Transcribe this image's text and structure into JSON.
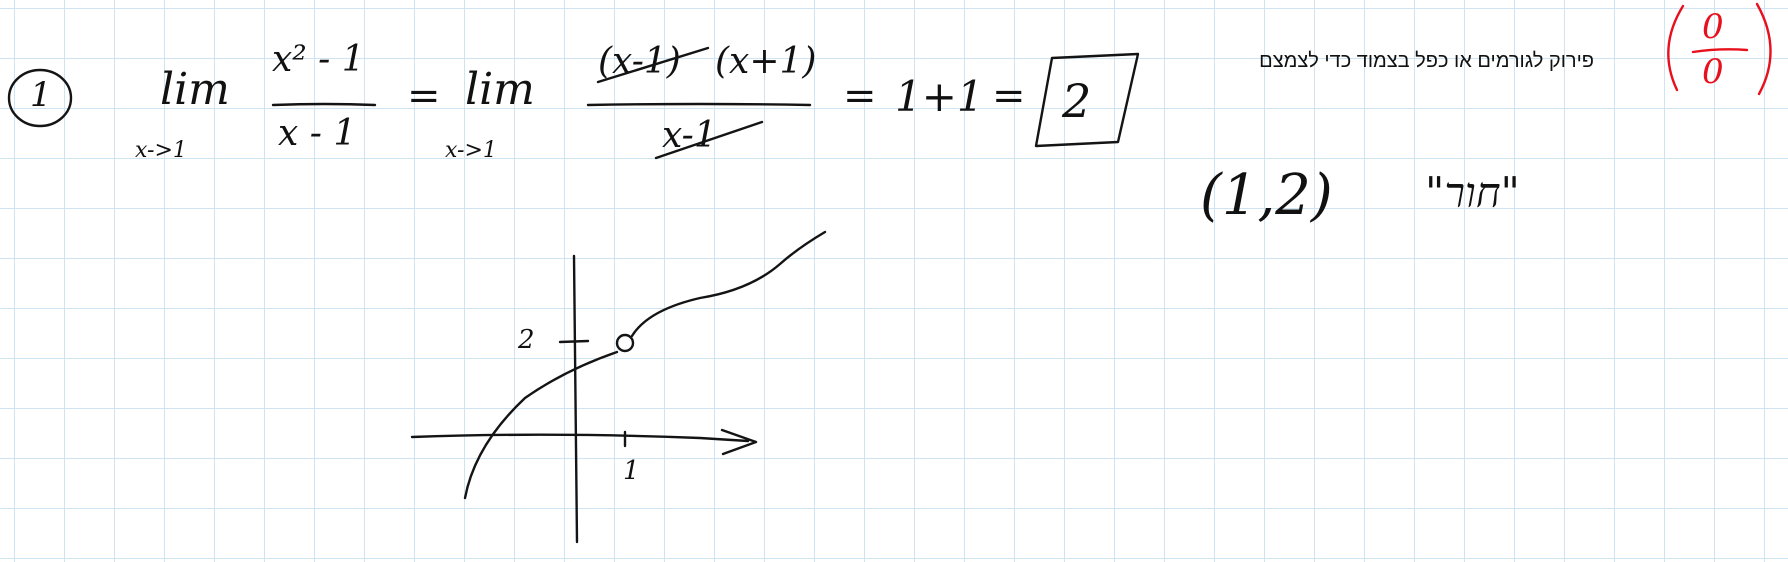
{
  "problem": {
    "number": "1",
    "lim1": {
      "word": "lim",
      "subscript": "x->1"
    },
    "fraction1": {
      "numerator": "x² - 1",
      "denominator": "x - 1"
    },
    "equals": "=",
    "lim2": {
      "word": "lim",
      "subscript": "x->1"
    },
    "fraction2": {
      "numerator_factor1": "(x-1)",
      "numerator_factor2": "(x+1)",
      "denominator": "x-1"
    },
    "sum": "1+1",
    "answer": "2"
  },
  "note": {
    "text": "פירוק לגורמים או כפל בצמוד כדי לצמצם"
  },
  "indeterminate": {
    "numerator": "0",
    "denominator": "0",
    "color": "#e8101c"
  },
  "hole": {
    "point": "(1,2)",
    "label": "\"חור\""
  },
  "graph": {
    "y_tick_label": "2",
    "x_tick_label": "1",
    "hole_x": 1,
    "hole_y": 2
  }
}
